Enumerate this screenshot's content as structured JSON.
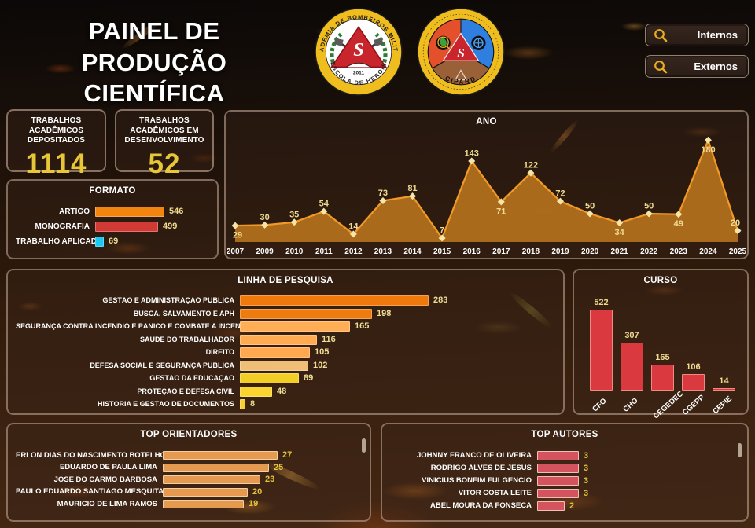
{
  "header": {
    "title_line1": "PAINEL DE",
    "title_line2": "PRODUÇÃO CIENTÍFICA",
    "buttons": [
      {
        "label": "Internos"
      },
      {
        "label": "Externos"
      }
    ],
    "logos": [
      {
        "ring_top": "ACADEMIA DE BOMBEIROS MILITAR",
        "ring_bottom": "ESCOLA DE HEROIS",
        "year": "2011"
      },
      {
        "label": "CIPARD"
      }
    ]
  },
  "kpis": [
    {
      "label": "TRABALHOS ACADÊMICOS DEPOSITADOS",
      "value": "1114"
    },
    {
      "label": "TRABALHOS ACADÊMICOS EM DESENVOLVIMENTO",
      "value": "52"
    }
  ],
  "colors": {
    "accent_yellow": "#E7C737",
    "value_label": "#EFD98F",
    "panel_border": "#D6BAA6",
    "artigo_orange": "#F28510",
    "monografia_red": "#D23B35",
    "aplicado_cyan": "#1BC9F2"
  },
  "chart_data": [
    {
      "name": "formato",
      "type": "bar",
      "orientation": "horizontal",
      "title": "FORMATO",
      "categories": [
        "ARTIGO",
        "MONOGRAFIA",
        "TRABALHO APLICADO"
      ],
      "values": [
        546,
        499,
        69
      ],
      "bar_colors": [
        "#F28510",
        "#D23B35",
        "#1BC9F2"
      ]
    },
    {
      "name": "ano",
      "type": "area",
      "title": "ANO",
      "x": [
        "2007",
        "2009",
        "2010",
        "2011",
        "2012",
        "2013",
        "2014",
        "2015",
        "2016",
        "2017",
        "2018",
        "2019",
        "2020",
        "2021",
        "2022",
        "2023",
        "2024",
        "2025"
      ],
      "values": [
        29,
        30,
        35,
        54,
        14,
        73,
        81,
        7,
        143,
        71,
        122,
        72,
        50,
        34,
        50,
        49,
        180,
        20
      ],
      "label_side": [
        "below",
        "above",
        "above",
        "above",
        "above",
        "above",
        "above",
        "above",
        "above",
        "below",
        "above",
        "above",
        "above",
        "below",
        "above",
        "below",
        "below",
        "above"
      ],
      "ylim": [
        0,
        200
      ],
      "line_color": "#F29A27",
      "fill_color": "#B4711D",
      "marker_color": "#F4E4A8",
      "label_color": "#F0DA92"
    },
    {
      "name": "linha_de_pesquisa",
      "type": "bar",
      "orientation": "horizontal",
      "title": "LINHA DE PESQUISA",
      "categories": [
        "GESTÃO E ADMINISTRAÇÃO PÚBLICA",
        "BUSCA, SALVAMENTO E APH",
        "SEGURANÇA CONTRA INCÊNDIO E PÂNICO E COMBATE A INCÊNDIOS",
        "SAÚDE DO TRABALHADOR",
        "DIREITO",
        "DEFESA SOCIAL E SEGURANÇA PÚBLICA",
        "GESTÃO DA EDUCAÇÃO",
        "PROTEÇÃO E DEFESA CIVIL",
        "HISTÓRIA E GESTÃO DE DOCUMENTOS"
      ],
      "values": [
        283,
        198,
        165,
        116,
        105,
        102,
        89,
        48,
        8
      ],
      "bar_colors": [
        "#F0790B",
        "#EE7B0D",
        "#FFAE55",
        "#FFAB52",
        "#FFA84F",
        "#EFBF78",
        "#F3CE25",
        "#FBD42F",
        "#F7CF2E"
      ]
    },
    {
      "name": "curso",
      "type": "bar",
      "orientation": "vertical",
      "title": "CURSO",
      "categories": [
        "CFO",
        "CHO",
        "CEGEDEC",
        "CGEPP",
        "CEPIE"
      ],
      "values": [
        522,
        307,
        165,
        106,
        14
      ],
      "bar_color": "#DA3940"
    },
    {
      "name": "top_orientadores",
      "type": "bar",
      "orientation": "horizontal",
      "title": "TOP ORIENTADORES",
      "categories": [
        "ERLON DIAS DO NASCIMENTO BOTELHO",
        "EDUARDO DE PAULA LIMA",
        "JOSE DO CARMO BARBOSA",
        "PAULO EDUARDO SANTIAGO MESQUITA",
        "MAURICIO DE LIMA RAMOS"
      ],
      "values": [
        27,
        25,
        23,
        20,
        19
      ],
      "bar_color": "#E59A50"
    },
    {
      "name": "top_autores",
      "type": "bar",
      "orientation": "horizontal",
      "title": "TOP AUTORES",
      "categories": [
        "JOHNNY FRANCO DE OLIVEIRA",
        "RODRIGO ALVES DE JESUS",
        "VINICIUS BONFIM FULGENCIO",
        "VITOR COSTA LEITE",
        "ABEL MOURA DA FONSECA"
      ],
      "values": [
        3,
        3,
        3,
        3,
        2
      ],
      "bar_color": "#D5535F"
    }
  ]
}
